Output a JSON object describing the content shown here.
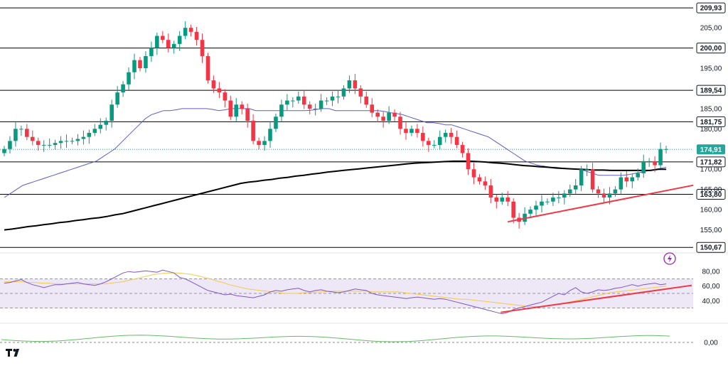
{
  "chart_data": [
    {
      "type": "candlestick",
      "y_range": [
        150,
        211
      ],
      "x_range": [
        0,
        118
      ],
      "colors": {
        "up": "#089981",
        "down": "#f23645",
        "sma50": "#5b5ec7",
        "sma200": "#000000",
        "trendline": "#f23645",
        "last_price_line": "#26a69a"
      },
      "horizontal_levels": [
        {
          "value": 209.93,
          "label": "209,93"
        },
        {
          "value": 200.0,
          "label": "200,00"
        },
        {
          "value": 189.54,
          "label": "189,54"
        },
        {
          "value": 181.75,
          "label": "181,75"
        },
        {
          "value": 171.82,
          "label": "171,82"
        },
        {
          "value": 163.8,
          "label": "163,80"
        },
        {
          "value": 150.67,
          "label": "150,67"
        }
      ],
      "last_price": {
        "value": 174.91,
        "label": "174,91"
      },
      "y_ticks": [
        {
          "value": 205,
          "label": "205,00"
        },
        {
          "value": 195,
          "label": "195,00"
        },
        {
          "value": 185,
          "label": "185,00"
        },
        {
          "value": 180,
          "label": "180,00"
        },
        {
          "value": 170,
          "label": "170,00"
        },
        {
          "value": 165,
          "label": "165,00"
        },
        {
          "value": 160,
          "label": "160,00"
        },
        {
          "value": 155,
          "label": "155,00"
        }
      ],
      "close_series": [
        175,
        177,
        180,
        180,
        178,
        177,
        176,
        176,
        176,
        176.5,
        177,
        177,
        177,
        177.5,
        178,
        179,
        180,
        181,
        182,
        186,
        189,
        191,
        194,
        197,
        195,
        198,
        200,
        203,
        202,
        200,
        201,
        203,
        205,
        204,
        202,
        198,
        192,
        190,
        189,
        187,
        183,
        186,
        185,
        182,
        177,
        176,
        177,
        180,
        183,
        186,
        187,
        187,
        188,
        186,
        185,
        185,
        187,
        187,
        188,
        188,
        190,
        192,
        190,
        188,
        186,
        184,
        183,
        182,
        184,
        183,
        180,
        179,
        180,
        179,
        177,
        176,
        176,
        178,
        179,
        178,
        176,
        174,
        170,
        168,
        167,
        166,
        163,
        162,
        163,
        162,
        158,
        157,
        159,
        160,
        161,
        162,
        162,
        163,
        163,
        164,
        165,
        166,
        170,
        170,
        165,
        164,
        163,
        164,
        165,
        168,
        167,
        168,
        169,
        172,
        172,
        171,
        175,
        175
      ],
      "sma50_series": [
        163,
        164,
        165,
        166,
        166.5,
        167,
        167.5,
        168,
        168.5,
        169,
        169.5,
        170,
        170.5,
        171,
        171.5,
        172,
        173,
        174,
        175,
        176.5,
        178,
        179.5,
        181,
        182.5,
        183.5,
        184,
        184.5,
        184.5,
        184.7,
        185,
        185,
        185,
        185,
        185,
        184.8,
        184.5,
        184.7,
        185,
        185,
        185,
        185,
        184.5,
        184.5,
        184.5,
        184.5,
        184.5,
        184.5,
        184.5,
        184.5,
        184.5,
        184.6,
        184.8,
        185,
        185,
        184.5,
        184.5,
        184.5,
        184.5,
        184.5,
        184.5,
        184.5,
        184.5,
        184.3,
        184,
        183.8,
        183.5,
        183,
        182.5,
        182,
        181.5,
        181.5,
        181.3,
        181,
        181,
        180.5,
        180,
        179.5,
        179,
        178.5,
        178,
        177,
        176,
        175,
        174,
        173,
        172,
        171.5,
        171,
        170.8,
        170.5,
        170.5,
        170.3,
        170.2,
        170,
        170,
        169.5,
        169,
        168.5,
        168.5,
        168.5,
        168.5,
        168.5,
        168.7,
        169,
        169.3,
        169.6,
        169.9,
        170.2,
        170.5
      ],
      "sma200_series": [
        155,
        155.2,
        155.5,
        155.8,
        156,
        156.3,
        156.5,
        156.8,
        157,
        157.3,
        157.5,
        157.8,
        158,
        158.3,
        158.7,
        159,
        159.5,
        160,
        160.5,
        161,
        161.5,
        162,
        162.5,
        163,
        163.5,
        164,
        164.5,
        165,
        165.5,
        166,
        166.5,
        166.8,
        167,
        167.3,
        167.5,
        167.8,
        168,
        168.3,
        168.5,
        168.8,
        169,
        169.3,
        169.5,
        169.7,
        169.9,
        170.1,
        170.3,
        170.5,
        170.7,
        170.9,
        171.1,
        171.3,
        171.5,
        171.6,
        171.7,
        171.8,
        171.9,
        172,
        172,
        172,
        171.9,
        171.8,
        171.6,
        171.5,
        171.3,
        171.1,
        170.9,
        170.8,
        170.6,
        170.5,
        170.3,
        170.2,
        170.1,
        170,
        169.9,
        169.8,
        169.8,
        169.7,
        169.7,
        169.7,
        169.7,
        169.7,
        169.7,
        170,
        170
      ],
      "trendline": {
        "x": [
          89,
          118
        ],
        "y": [
          157,
          165.5
        ]
      }
    },
    {
      "type": "line",
      "indicator": "RSI",
      "y_range": [
        12,
        87
      ],
      "y_ticks": [
        {
          "value": 80,
          "label": "80,00"
        },
        {
          "value": 60,
          "label": "60,00"
        },
        {
          "value": 40,
          "label": "40,00"
        }
      ],
      "bands": {
        "upper": 70,
        "middle": 50,
        "lower": 30
      },
      "colors": {
        "rsi": "#7e57c2",
        "signal": "#f7c948",
        "band_fill": "#ede7f6",
        "trendline": "#f23645"
      },
      "rsi_series": [
        64,
        65,
        67,
        69,
        65,
        62,
        60,
        58,
        60,
        62,
        62,
        63,
        64,
        65,
        63,
        62,
        61,
        63,
        66,
        70,
        74,
        78,
        80,
        79,
        80,
        81,
        80,
        79,
        82,
        80,
        78,
        72,
        70,
        66,
        62,
        58,
        54,
        52,
        50,
        48,
        49,
        47,
        46,
        45,
        44,
        46,
        48,
        52,
        54,
        53,
        55,
        56,
        57,
        54,
        52,
        54,
        55,
        53,
        52,
        51,
        52,
        54,
        56,
        55,
        54,
        50,
        48,
        47,
        46,
        45,
        44,
        43,
        44,
        45,
        44,
        43,
        42,
        43,
        42,
        40,
        38,
        36,
        34,
        32,
        30,
        28,
        26,
        24,
        22,
        24,
        28,
        30,
        32,
        34,
        36,
        38,
        42,
        46,
        50,
        48,
        54,
        58,
        52,
        50,
        52,
        55,
        54,
        55,
        57,
        58,
        60,
        62,
        60,
        62,
        63,
        64,
        62,
        63
      ],
      "signal_series": [
        66,
        66,
        66,
        66,
        65,
        65,
        64,
        64,
        63,
        63,
        63,
        63,
        63,
        63,
        63,
        63,
        63,
        64,
        65,
        66,
        68,
        70,
        72,
        74,
        76,
        77,
        78,
        78,
        78,
        77,
        76,
        74,
        72,
        70,
        67,
        65,
        62,
        60,
        58,
        56,
        55,
        54,
        53,
        52,
        51,
        50,
        50,
        50,
        51,
        51,
        52,
        52,
        53,
        53,
        53,
        53,
        53,
        53,
        53,
        52,
        52,
        52,
        52,
        52,
        51,
        50,
        49,
        48,
        47,
        46,
        45,
        44,
        43,
        42,
        42,
        41,
        40,
        39,
        38,
        37,
        36,
        35,
        34,
        33,
        32,
        32,
        32,
        33,
        34,
        35,
        37,
        39,
        41,
        43,
        45,
        47,
        49,
        51,
        52,
        53,
        54,
        55,
        56,
        57,
        58,
        59,
        60
      ],
      "trendline": {
        "x": [
          86,
          118
        ],
        "y": [
          24,
          61
        ]
      }
    },
    {
      "type": "line",
      "indicator": "Oscillator",
      "y_ticks": [
        {
          "value": 0,
          "label": "0,00"
        }
      ],
      "colors": {
        "line": "#66bb6a",
        "zero": "#888888"
      }
    }
  ]
}
